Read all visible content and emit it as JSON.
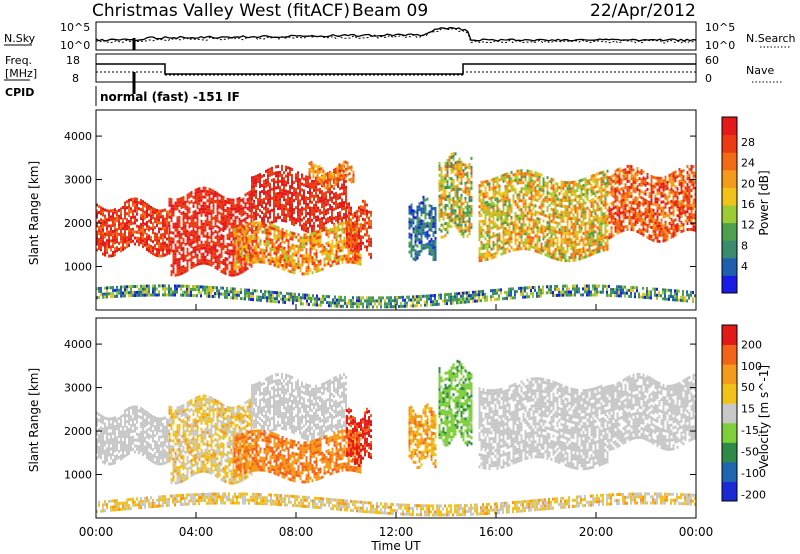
{
  "header": {
    "station": "Christmas Valley West (fitACF)",
    "beam": "Beam 09",
    "date": "22/Apr/2012"
  },
  "panel_labels": {
    "nsky": "N.Sky",
    "nsearch": "N.Search",
    "freq_line1": "Freq.",
    "freq_line2": "[MHz]",
    "nave": "Nave",
    "cpid": "CPID",
    "cpid_value": "normal (fast) -151 IF"
  },
  "nsky_axis": {
    "left_ticks": [
      "10^5",
      "10^0"
    ],
    "right_ticks": [
      "10^5",
      "10^0"
    ]
  },
  "freq_axis": {
    "left_ticks": [
      "18",
      "8"
    ],
    "right_ticks": [
      "60",
      "0"
    ]
  },
  "chart_data": [
    {
      "type": "heatmap",
      "title": "Power [dB]",
      "ylabel": "Slant Range [km]",
      "xlabel": "",
      "ylim": [
        0,
        4600
      ],
      "y_ticks": [
        "1000",
        "2000",
        "3000",
        "4000"
      ],
      "colorbar": {
        "label": "Power [dB]",
        "ticks": [
          "4",
          "8",
          "12",
          "16",
          "20",
          "24",
          "28"
        ],
        "colors": [
          "#1a1ae6",
          "#1f5fb0",
          "#3a8a6e",
          "#4da04d",
          "#9ccc33",
          "#f2c21a",
          "#f59a1a",
          "#f36a14",
          "#ec3a12",
          "#e41a1a"
        ]
      },
      "bands": [
        {
          "t": [
            0.0,
            2.9
          ],
          "r": [
            1350,
            2450
          ],
          "v": [
            0.75,
            0.97
          ]
        },
        {
          "t": [
            2.9,
            6.2
          ],
          "r": [
            950,
            2700
          ],
          "v": [
            0.8,
            0.97
          ]
        },
        {
          "t": [
            6.2,
            10.0
          ],
          "r": [
            1900,
            3200
          ],
          "v": [
            0.82,
            0.98
          ]
        },
        {
          "t": [
            5.5,
            10.6
          ],
          "r": [
            1000,
            1900
          ],
          "v": [
            0.45,
            0.9
          ]
        },
        {
          "t": [
            8.5,
            10.3
          ],
          "r": [
            2900,
            3300
          ],
          "v": [
            0.55,
            0.85
          ]
        },
        {
          "t": [
            10.0,
            11.0
          ],
          "r": [
            1300,
            2400
          ],
          "v": [
            0.7,
            0.98
          ]
        },
        {
          "t": [
            12.5,
            13.6
          ],
          "r": [
            1300,
            2500
          ],
          "v": [
            0.05,
            0.35
          ]
        },
        {
          "t": [
            13.7,
            15.0
          ],
          "r": [
            1800,
            3500
          ],
          "v": [
            0.2,
            0.75
          ]
        },
        {
          "t": [
            15.3,
            20.5
          ],
          "r": [
            1300,
            3100
          ],
          "v": [
            0.35,
            0.8
          ]
        },
        {
          "t": [
            20.5,
            24.0
          ],
          "r": [
            1700,
            3200
          ],
          "v": [
            0.6,
            0.97
          ]
        },
        {
          "t": [
            0.0,
            24.0
          ],
          "r": [
            200,
            450
          ],
          "v": [
            0.05,
            0.55
          ]
        }
      ]
    },
    {
      "type": "heatmap",
      "title": "Velocity [m s^-1]",
      "ylabel": "Slant Range [km]",
      "xlabel": "Time UT",
      "ylim": [
        0,
        4600
      ],
      "y_ticks": [
        "1000",
        "2000",
        "3000",
        "4000"
      ],
      "x_ticks": [
        "00:00",
        "04:00",
        "08:00",
        "12:00",
        "16:00",
        "20:00",
        "00:00"
      ],
      "xlim_hours": [
        0,
        24
      ],
      "colorbar": {
        "label": "Velocity [m s^-1]",
        "ticks": [
          "200",
          "100",
          "50",
          "15",
          "-15",
          "-50",
          "-100",
          "-200"
        ],
        "colors": [
          "#1a2bd6",
          "#1f66b0",
          "#2f8a47",
          "#7ecf3a",
          "#c8c8c8",
          "#f2c21a",
          "#f59a1a",
          "#f3641a",
          "#e41a1a"
        ]
      },
      "bands": [
        {
          "t": [
            0.0,
            2.9
          ],
          "r": [
            1350,
            2450
          ],
          "v": [
            0.45,
            0.55
          ]
        },
        {
          "t": [
            2.9,
            6.2
          ],
          "r": [
            950,
            2700
          ],
          "v": [
            0.45,
            0.7
          ]
        },
        {
          "t": [
            6.2,
            10.0
          ],
          "r": [
            1900,
            3200
          ],
          "v": [
            0.45,
            0.55
          ]
        },
        {
          "t": [
            5.5,
            10.6
          ],
          "r": [
            1000,
            1900
          ],
          "v": [
            0.7,
            0.85
          ]
        },
        {
          "t": [
            10.0,
            11.0
          ],
          "r": [
            1300,
            2400
          ],
          "v": [
            0.85,
            1.0
          ]
        },
        {
          "t": [
            12.5,
            13.6
          ],
          "r": [
            1300,
            2500
          ],
          "v": [
            0.6,
            0.8
          ]
        },
        {
          "t": [
            13.7,
            15.0
          ],
          "r": [
            1800,
            3500
          ],
          "v": [
            0.3,
            0.45
          ]
        },
        {
          "t": [
            15.3,
            20.5
          ],
          "r": [
            1300,
            3100
          ],
          "v": [
            0.45,
            0.55
          ]
        },
        {
          "t": [
            20.5,
            24.0
          ],
          "r": [
            1700,
            3200
          ],
          "v": [
            0.45,
            0.55
          ]
        },
        {
          "t": [
            0.0,
            24.0
          ],
          "r": [
            200,
            450
          ],
          "v": [
            0.45,
            0.7
          ]
        }
      ]
    }
  ]
}
